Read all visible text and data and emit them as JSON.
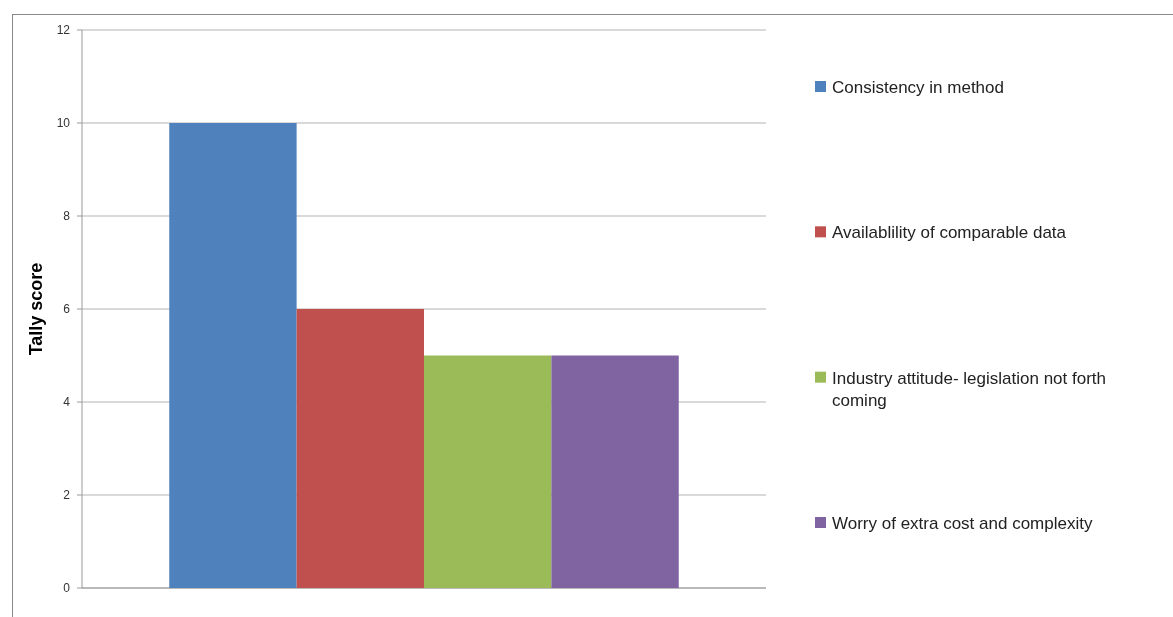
{
  "chart_data": {
    "type": "bar",
    "ylabel": "Tally score",
    "categories": [
      null
    ],
    "series": [
      {
        "name": "Consistency in method",
        "color": "#4f81bd",
        "values": [
          10
        ]
      },
      {
        "name": "Availablility of comparable data",
        "color": "#c0504d",
        "values": [
          6
        ]
      },
      {
        "name": "Industry attitude- legislation not forth coming",
        "color": "#9bbb59",
        "values": [
          5
        ]
      },
      {
        "name": "Worry of extra cost and complexity",
        "color": "#8064a2",
        "values": [
          5
        ]
      }
    ],
    "ylim": [
      0,
      12
    ],
    "yticks": [
      0,
      2,
      4,
      6,
      8,
      10,
      12
    ],
    "grid": "y",
    "legend": "right"
  }
}
